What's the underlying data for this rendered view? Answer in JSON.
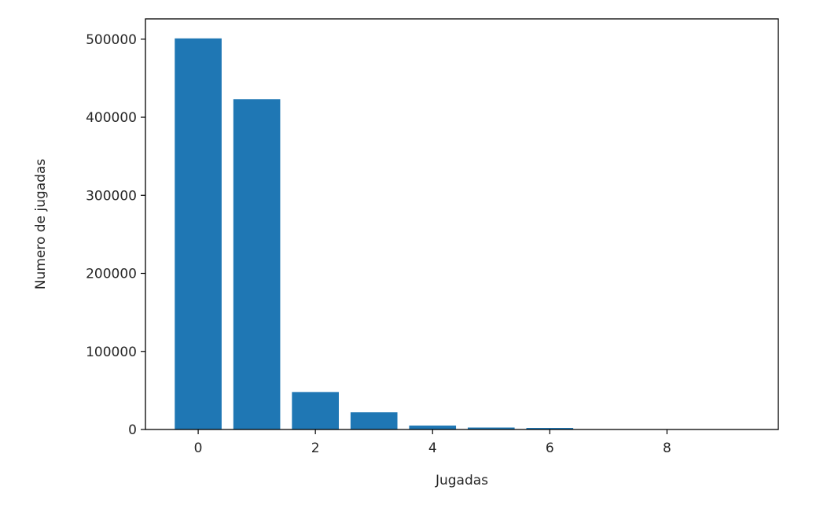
{
  "chart_data": {
    "type": "bar",
    "title": "",
    "xlabel": "Jugadas",
    "ylabel": "Numero de jugadas",
    "categories": [
      0,
      1,
      2,
      3,
      4,
      5,
      6,
      7,
      8,
      9
    ],
    "values": [
      501000,
      423000,
      48000,
      22000,
      5000,
      2500,
      2000,
      300,
      100,
      50
    ],
    "xlim": [
      -0.9,
      9.9
    ],
    "ylim": [
      0,
      526000
    ],
    "xticks": [
      0,
      2,
      4,
      6,
      8
    ],
    "xtick_labels": [
      "0",
      "2",
      "4",
      "6",
      "8"
    ],
    "yticks": [
      0,
      100000,
      200000,
      300000,
      400000,
      500000
    ],
    "ytick_labels": [
      "0",
      "100000",
      "200000",
      "300000",
      "400000",
      "500000"
    ],
    "bar_color": "#1f77b4",
    "grid": false,
    "legend": false
  }
}
